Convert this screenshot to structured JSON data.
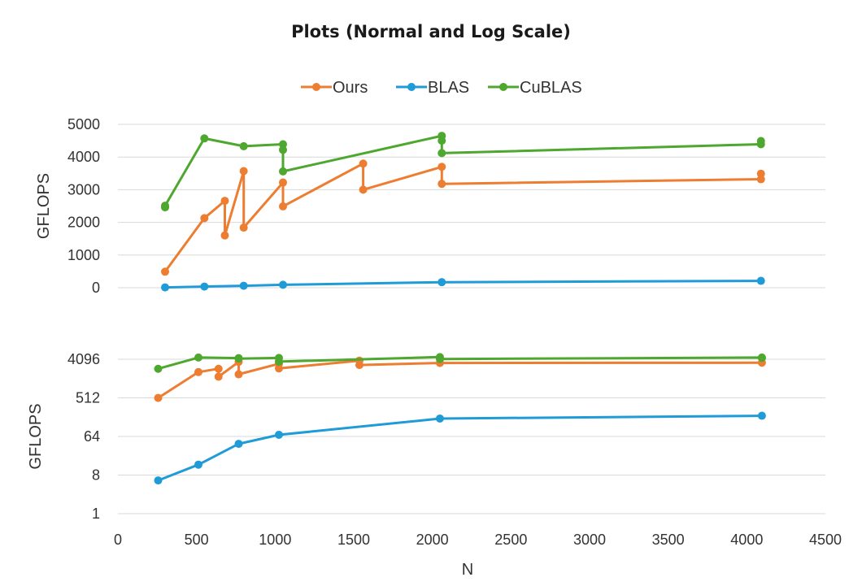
{
  "chart_data": {
    "type": "line",
    "title": "Plots (Normal and Log Scale)",
    "legend": {
      "position": "top-center",
      "entries": [
        "Ours",
        "BLAS",
        "CuBLAS"
      ]
    },
    "xlabel": "N",
    "xlim": [
      0,
      4500
    ],
    "xticks": [
      "0",
      "500",
      "1000",
      "1500",
      "2000",
      "2500",
      "3000",
      "3500",
      "4000",
      "4500"
    ],
    "panels": [
      {
        "scale": "linear",
        "ylabel": "GFLOPS",
        "ylim": [
          0,
          5000
        ],
        "yticks": [
          "0",
          "1000",
          "2000",
          "3000",
          "4000",
          "5000"
        ],
        "grid": true,
        "series": [
          {
            "name": "Ours",
            "color": "#ed7d31",
            "x": [
              300,
              550,
              680,
              680,
              800,
              800,
              1050,
              1050,
              1560,
              1560,
              2060,
              2060,
              4090,
              4090
            ],
            "y": [
              490,
              2130,
              2660,
              1600,
              3570,
              1840,
              3220,
              2490,
              3800,
              3000,
              3700,
              3180,
              3320,
              3490
            ]
          },
          {
            "name": "BLAS",
            "color": "#1f9bd8",
            "x": [
              300,
              550,
              800,
              1050,
              2060,
              4090
            ],
            "y": [
              10,
              35,
              60,
              90,
              170,
              210
            ]
          },
          {
            "name": "CuBLAS",
            "color": "#4ea72e",
            "x": [
              300,
              300,
              550,
              800,
              1050,
              1050,
              1050,
              2060,
              2060,
              2060,
              4090,
              4090
            ],
            "y": [
              2460,
              2510,
              4570,
              4330,
              4390,
              4220,
              3560,
              4650,
              4500,
              4120,
              4390,
              4490
            ]
          }
        ]
      },
      {
        "scale": "log2",
        "ylabel": "GFLOPS",
        "ylim": [
          1,
          4096
        ],
        "yticks": [
          "1",
          "8",
          "64",
          "512",
          "4096"
        ],
        "grid": true,
        "series": [
          {
            "name": "Ours",
            "color": "#ed7d31",
            "x": [
              256,
              512,
              640,
              640,
              768,
              768,
              1024,
              1024,
              1536,
              1536,
              2048,
              4096
            ],
            "y": [
              510,
              2050,
              2450,
              1600,
              3550,
              1820,
              3200,
              2500,
              3800,
              3000,
              3350,
              3400
            ]
          },
          {
            "name": "BLAS",
            "color": "#1f9bd8",
            "x": [
              256,
              512,
              768,
              1024,
              2048,
              4096
            ],
            "y": [
              6,
              14,
              43,
              70,
              168,
              195
            ]
          },
          {
            "name": "CuBLAS",
            "color": "#4ea72e",
            "x": [
              256,
              512,
              768,
              768,
              1024,
              1024,
              2048,
              2048,
              4096,
              4096
            ],
            "y": [
              2450,
              4500,
              4350,
              4250,
              4400,
              3600,
              4600,
              4150,
              4500,
              4400
            ]
          }
        ]
      }
    ]
  }
}
